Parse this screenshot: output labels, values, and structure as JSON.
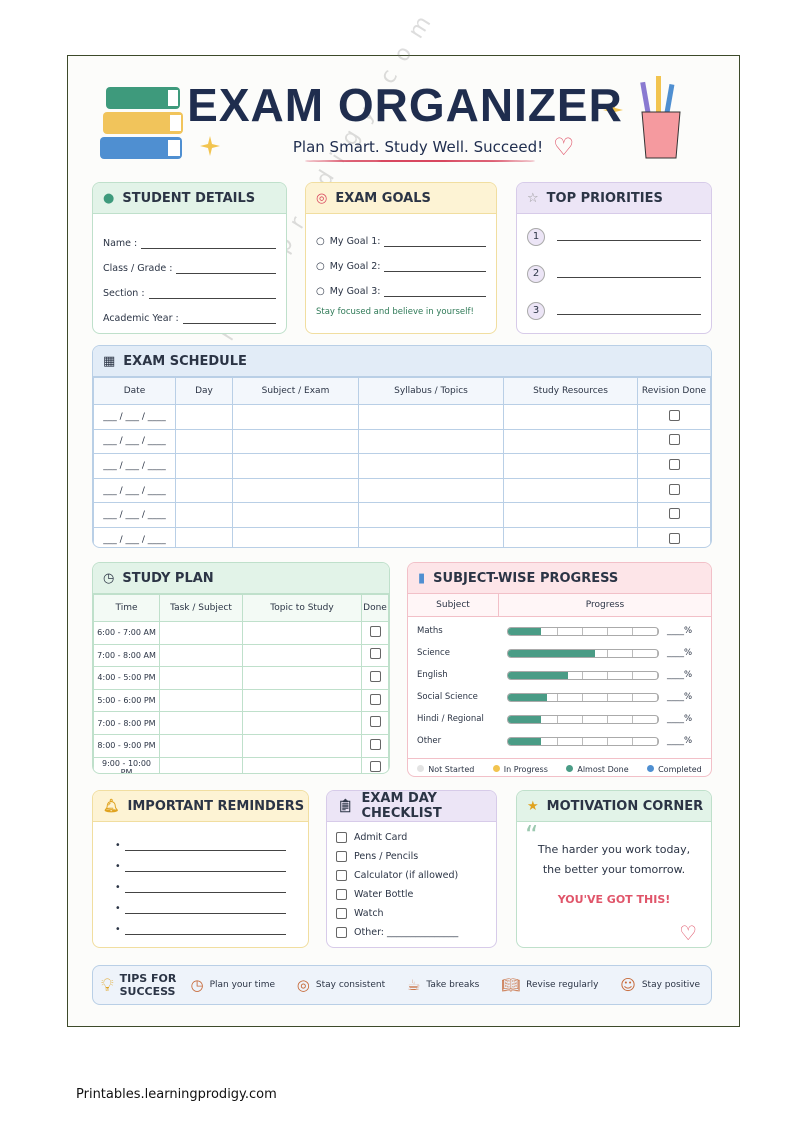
{
  "header": {
    "title": "EXAM ORGANIZER",
    "subtitle": "Plan Smart. Study Well. Succeed!"
  },
  "student_details": {
    "title": "STUDENT DETAILS",
    "fields": [
      "Name :",
      "Class / Grade :",
      "Section :",
      "Academic Year :"
    ]
  },
  "exam_goals": {
    "title": "EXAM GOALS",
    "goals": [
      "My Goal 1:",
      "My Goal 2:",
      "My Goal 3:"
    ],
    "note": "Stay focused and believe in yourself!"
  },
  "top_priorities": {
    "title": "TOP PRIORITIES",
    "items": [
      "1",
      "2",
      "3"
    ]
  },
  "exam_schedule": {
    "title": "EXAM SCHEDULE",
    "columns": [
      "Date",
      "Day",
      "Subject / Exam",
      "Syllabus / Topics",
      "Study Resources",
      "Revision Done"
    ],
    "dates": [
      "___ / ___ / ____",
      "___ / ___ / ____",
      "___ / ___ / ____",
      "___ / ___ / ____",
      "___ / ___ / ____",
      "___ / ___ / ____"
    ]
  },
  "study_plan": {
    "title": "STUDY PLAN",
    "columns": [
      "Time",
      "Task / Subject",
      "Topic to Study",
      "Done"
    ],
    "times": [
      "6:00 - 7:00 AM",
      "7:00 - 8:00 AM",
      "4:00 - 5:00 PM",
      "5:00 - 6:00 PM",
      "7:00 - 8:00 PM",
      "8:00 - 9:00 PM",
      "9:00 - 10:00 PM"
    ]
  },
  "subject_progress": {
    "title": "SUBJECT-WISE PROGRESS",
    "columns": [
      "Subject",
      "Progress"
    ],
    "subjects": [
      "Maths",
      "Science",
      "English",
      "Social Science",
      "Hindi / Regional",
      "Other"
    ],
    "percent_labels": [
      "____%",
      "____%",
      "____%",
      "____%",
      "____%",
      "____%"
    ],
    "legend": [
      "Not Started",
      "In Progress",
      "Almost Done",
      "Completed"
    ]
  },
  "reminders": {
    "title": "IMPORTANT REMINDERS"
  },
  "checklist": {
    "title": "EXAM DAY CHECKLIST",
    "items": [
      "Admit Card",
      "Pens / Pencils",
      "Calculator (if allowed)",
      "Water Bottle",
      "Watch",
      "Other: _______________"
    ]
  },
  "motivation": {
    "title": "MOTIVATION CORNER",
    "quote": [
      "The harder you work today,",
      "the better your tomorrow."
    ],
    "cheer": "YOU'VE GOT THIS!"
  },
  "tips": {
    "title": "TIPS FOR SUCCESS",
    "items": [
      "Plan your time",
      "Stay consistent",
      "Take breaks",
      "Revise regularly",
      "Stay positive"
    ]
  },
  "watermark": "Learningprodigy.com",
  "footer": "Printables.learningprodigy.com"
}
